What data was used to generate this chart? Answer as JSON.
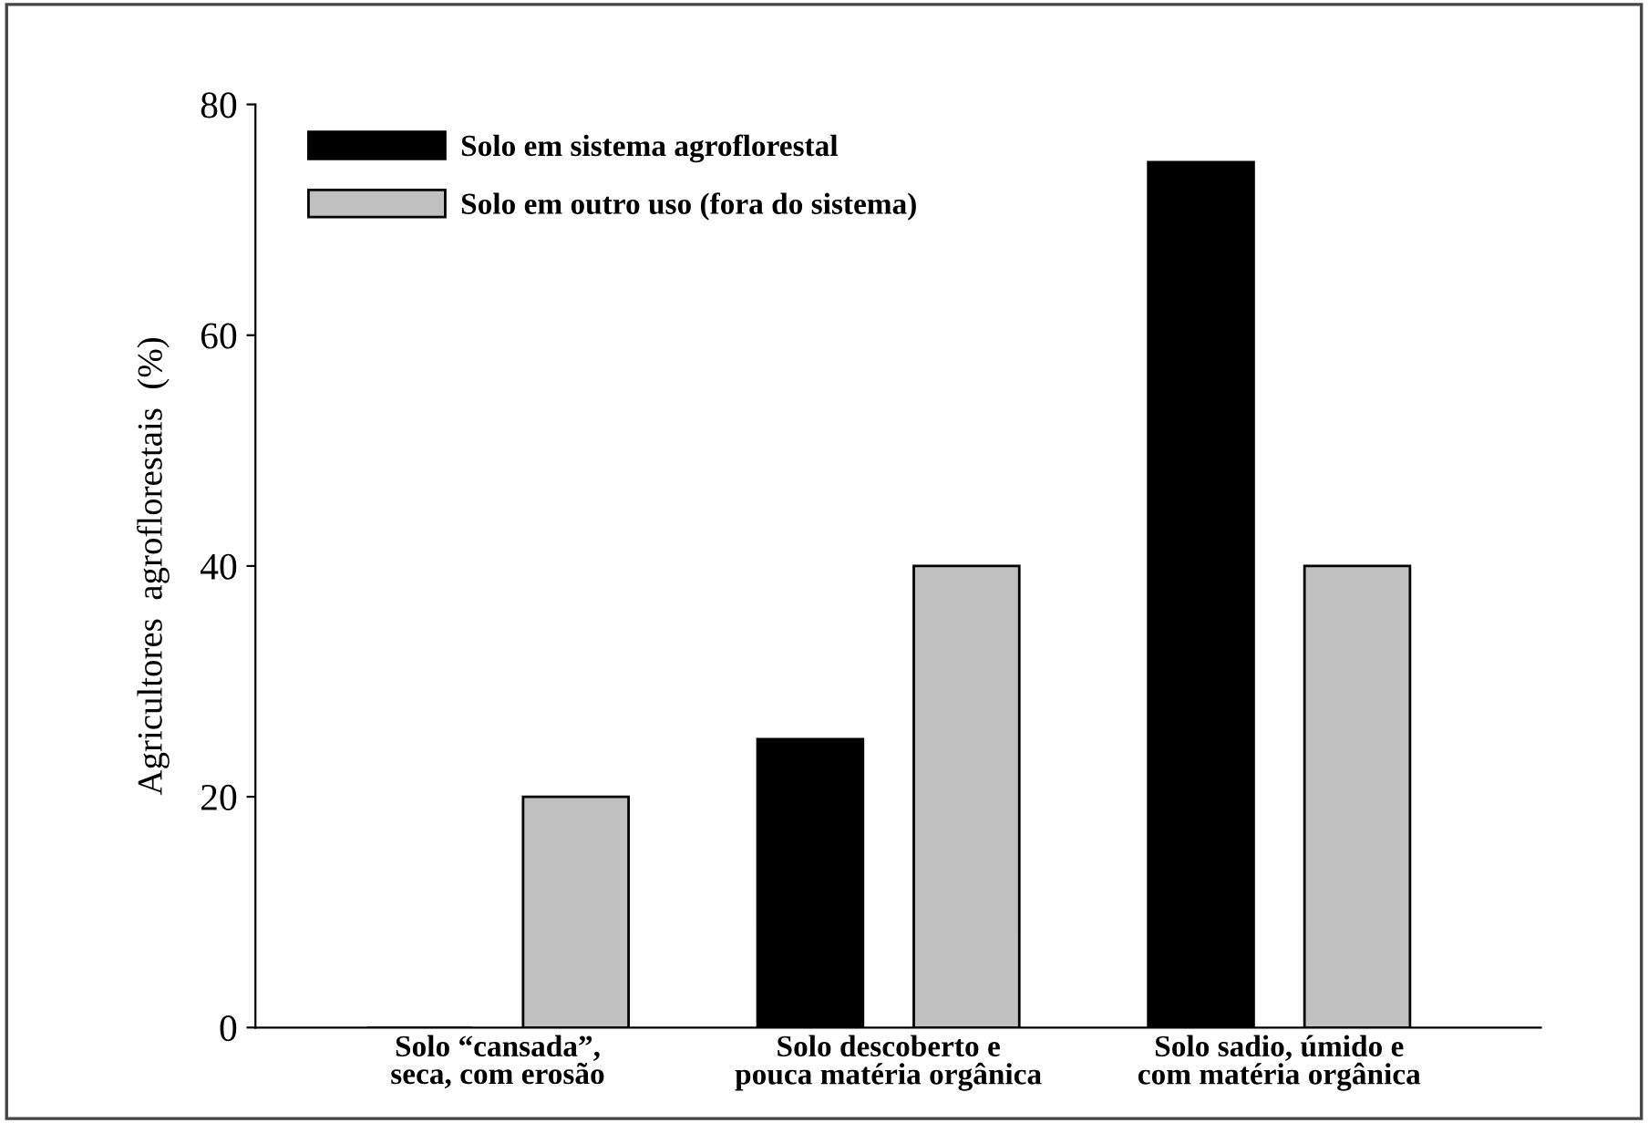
{
  "chart_data": {
    "type": "bar",
    "ylabel": "Agricultores  agroflorestais  (%)",
    "categories": [
      "Solo “cansada”, seca, com erosão",
      "Solo descoberto e pouca matéria orgânica",
      "Solo sadio, úmido e com matéria orgânica"
    ],
    "series": [
      {
        "name": "Solo em sistema agroflorestal",
        "color": "#000000",
        "values": [
          0,
          25,
          75
        ]
      },
      {
        "name": "Solo em outro uso (fora do sistema)",
        "color": "#c0c0c0",
        "values": [
          20,
          40,
          40
        ]
      }
    ],
    "ylim": [
      0,
      80
    ],
    "yticks": [
      0,
      20,
      40,
      60,
      80
    ],
    "grid": false,
    "legend": "top left"
  }
}
